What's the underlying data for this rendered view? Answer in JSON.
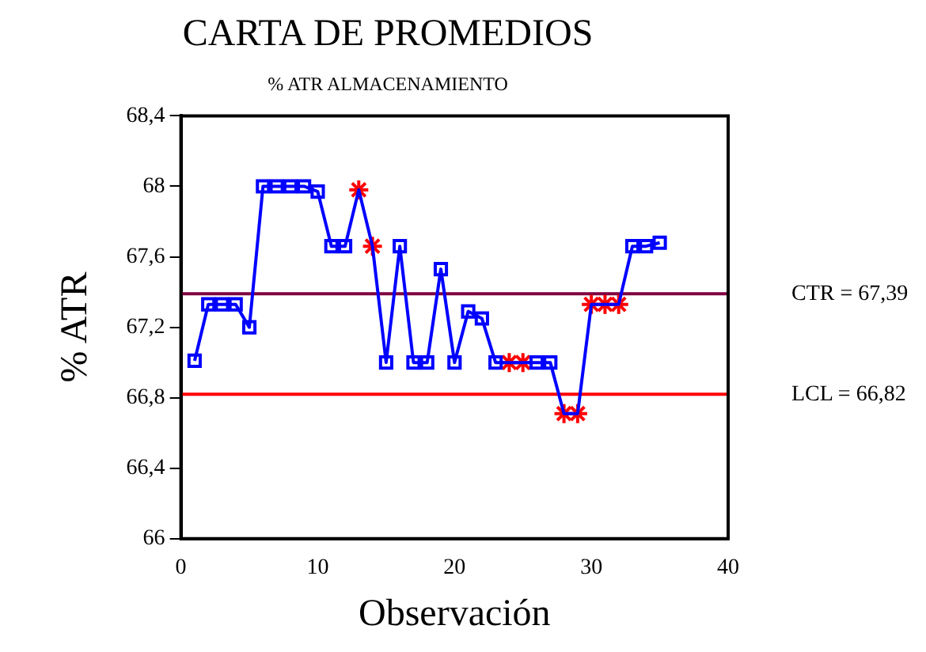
{
  "chart_data": {
    "type": "line",
    "title": "CARTA DE PROMEDIOS",
    "subtitle": "% ATR ALMACENAMIENTO",
    "xlabel": "Observación",
    "ylabel": "% ATR",
    "x": [
      1,
      2,
      3,
      4,
      5,
      6,
      7,
      8,
      9,
      10,
      11,
      12,
      13,
      14,
      15,
      16,
      17,
      18,
      19,
      20,
      21,
      22,
      23,
      24,
      25,
      26,
      27,
      28,
      29,
      30,
      31,
      32,
      33,
      34,
      35
    ],
    "series": [
      {
        "color": "#0000ff",
        "marker": "none",
        "values": [
          67.01,
          67.33,
          67.33,
          67.33,
          67.2,
          68.0,
          68.0,
          68.0,
          68.0,
          67.97,
          67.66,
          67.66,
          67.98,
          67.66,
          67.0,
          67.66,
          67.0,
          67.0,
          67.53,
          67.0,
          67.29,
          67.25,
          67.0,
          67.0,
          67.0,
          67.0,
          67.0,
          66.71,
          66.71,
          67.33,
          67.33,
          67.33,
          67.66,
          67.66,
          67.68
        ]
      },
      {
        "type": "scatter",
        "color": "#0000ff",
        "marker": "square",
        "values": [
          67.01,
          67.33,
          67.33,
          67.33,
          67.2,
          68.0,
          68.0,
          68.0,
          68.0,
          67.97,
          67.66,
          67.66,
          null,
          null,
          67.0,
          67.66,
          67.0,
          67.0,
          67.53,
          67.0,
          67.29,
          67.25,
          67.0,
          null,
          null,
          67.0,
          67.0,
          null,
          null,
          null,
          null,
          null,
          67.66,
          67.66,
          67.68
        ]
      },
      {
        "type": "scatter",
        "color": "#ff0000",
        "marker": "cross",
        "values": [
          null,
          null,
          null,
          null,
          null,
          null,
          null,
          null,
          null,
          null,
          null,
          null,
          67.98,
          67.66,
          null,
          null,
          null,
          null,
          null,
          null,
          null,
          null,
          null,
          67.0,
          67.0,
          null,
          null,
          66.71,
          66.71,
          67.33,
          67.33,
          67.33,
          null,
          null,
          null
        ]
      }
    ],
    "xlim": [
      0,
      40
    ],
    "xticks": [
      0,
      10,
      20,
      30,
      40
    ],
    "ylim": [
      66,
      68.4
    ],
    "yticks": [
      66,
      {
        "value": 66.4,
        "label": "66,4"
      },
      {
        "value": 66.8,
        "label": "66,8"
      },
      {
        "value": 67.2,
        "label": "67,2"
      },
      {
        "value": 67.6,
        "label": "67,6"
      },
      68,
      {
        "value": 68.4,
        "label": "68,4"
      }
    ],
    "ref_lines": [
      {
        "axis": "y",
        "value": 67.39,
        "label": "CTR = 67,39",
        "color": "#800040"
      },
      {
        "axis": "y",
        "value": 66.82,
        "label": "LCL = 66,82",
        "color": "#ff0000"
      }
    ],
    "grid": false,
    "legend": false
  }
}
